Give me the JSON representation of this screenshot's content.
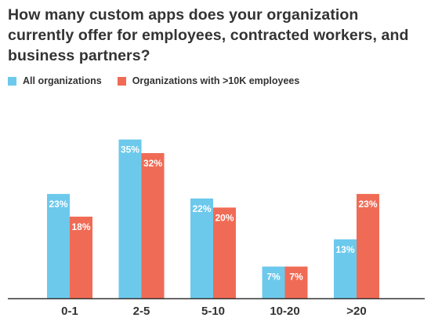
{
  "chart_data": {
    "type": "bar",
    "title": "How many custom apps does your organization currently offer for employees, contracted workers, and business partners?",
    "categories": [
      "0-1",
      "2-5",
      "5-10",
      "10-20",
      ">20"
    ],
    "series": [
      {
        "name": "All organizations",
        "values": [
          23,
          35,
          22,
          7,
          13
        ],
        "color": "#6cc9ec"
      },
      {
        "name": "Organizations with >10K employees",
        "values": [
          18,
          32,
          20,
          7,
          23
        ],
        "color": "#f06b55"
      }
    ],
    "value_suffix": "%",
    "ylim": [
      0,
      40
    ],
    "grid": false,
    "legend": "top-left",
    "axis_color": "#333333"
  }
}
